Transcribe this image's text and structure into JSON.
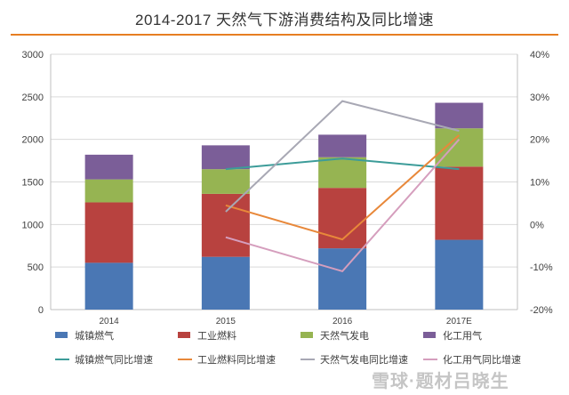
{
  "title": "2014-2017 天然气下游消费结构及同比增速",
  "watermark": "雪球·题材吕晓生",
  "chart_data": {
    "type": "bar",
    "stacked": true,
    "categories": [
      "2014",
      "2015",
      "2016",
      "2017E"
    ],
    "ylim": [
      0,
      3000
    ],
    "yticks": [
      0,
      500,
      1000,
      1500,
      2000,
      2500,
      3000
    ],
    "y2lim": [
      -20,
      40
    ],
    "y2ticks": [
      "-20%",
      "-10%",
      "0%",
      "10%",
      "20%",
      "30%",
      "40%"
    ],
    "grid": true,
    "legend_position": "bottom",
    "series": [
      {
        "name": "城镇燃气",
        "values": [
          550,
          620,
          720,
          820
        ],
        "color": "#4a77b4"
      },
      {
        "name": "工业燃料",
        "values": [
          710,
          740,
          710,
          860
        ],
        "color": "#b8423f"
      },
      {
        "name": "天然气发电",
        "values": [
          270,
          290,
          360,
          450
        ],
        "color": "#96b452"
      },
      {
        "name": "化工用气",
        "values": [
          290,
          280,
          265,
          300
        ],
        "color": "#7b5e98"
      }
    ],
    "line_series": [
      {
        "name": "城镇燃气同比增速",
        "x": [
          0,
          1,
          2,
          3
        ],
        "values": [
          null,
          13,
          15.5,
          13
        ],
        "color": "#3c9c99"
      },
      {
        "name": "工业燃料同比增速",
        "x": [
          1,
          2,
          3
        ],
        "values": [
          4.5,
          -3.5,
          21
        ],
        "color": "#e8883a"
      },
      {
        "name": "天然气发电同比增速",
        "x": [
          1,
          2,
          3
        ],
        "values": [
          3,
          29,
          22
        ],
        "color": "#a8a8b4"
      },
      {
        "name": "化工用气同比增速",
        "x": [
          1,
          2,
          3
        ],
        "values": [
          -3,
          -11,
          20
        ],
        "color": "#d59ebd"
      }
    ],
    "legend_rows": [
      [
        "城镇燃气",
        "工业燃料",
        "天然气发电",
        "化工用气"
      ],
      [
        "城镇燃气同比增速",
        "工业燃料同比增速",
        "天然气发电同比增速",
        "化工用气同比增速"
      ]
    ]
  }
}
